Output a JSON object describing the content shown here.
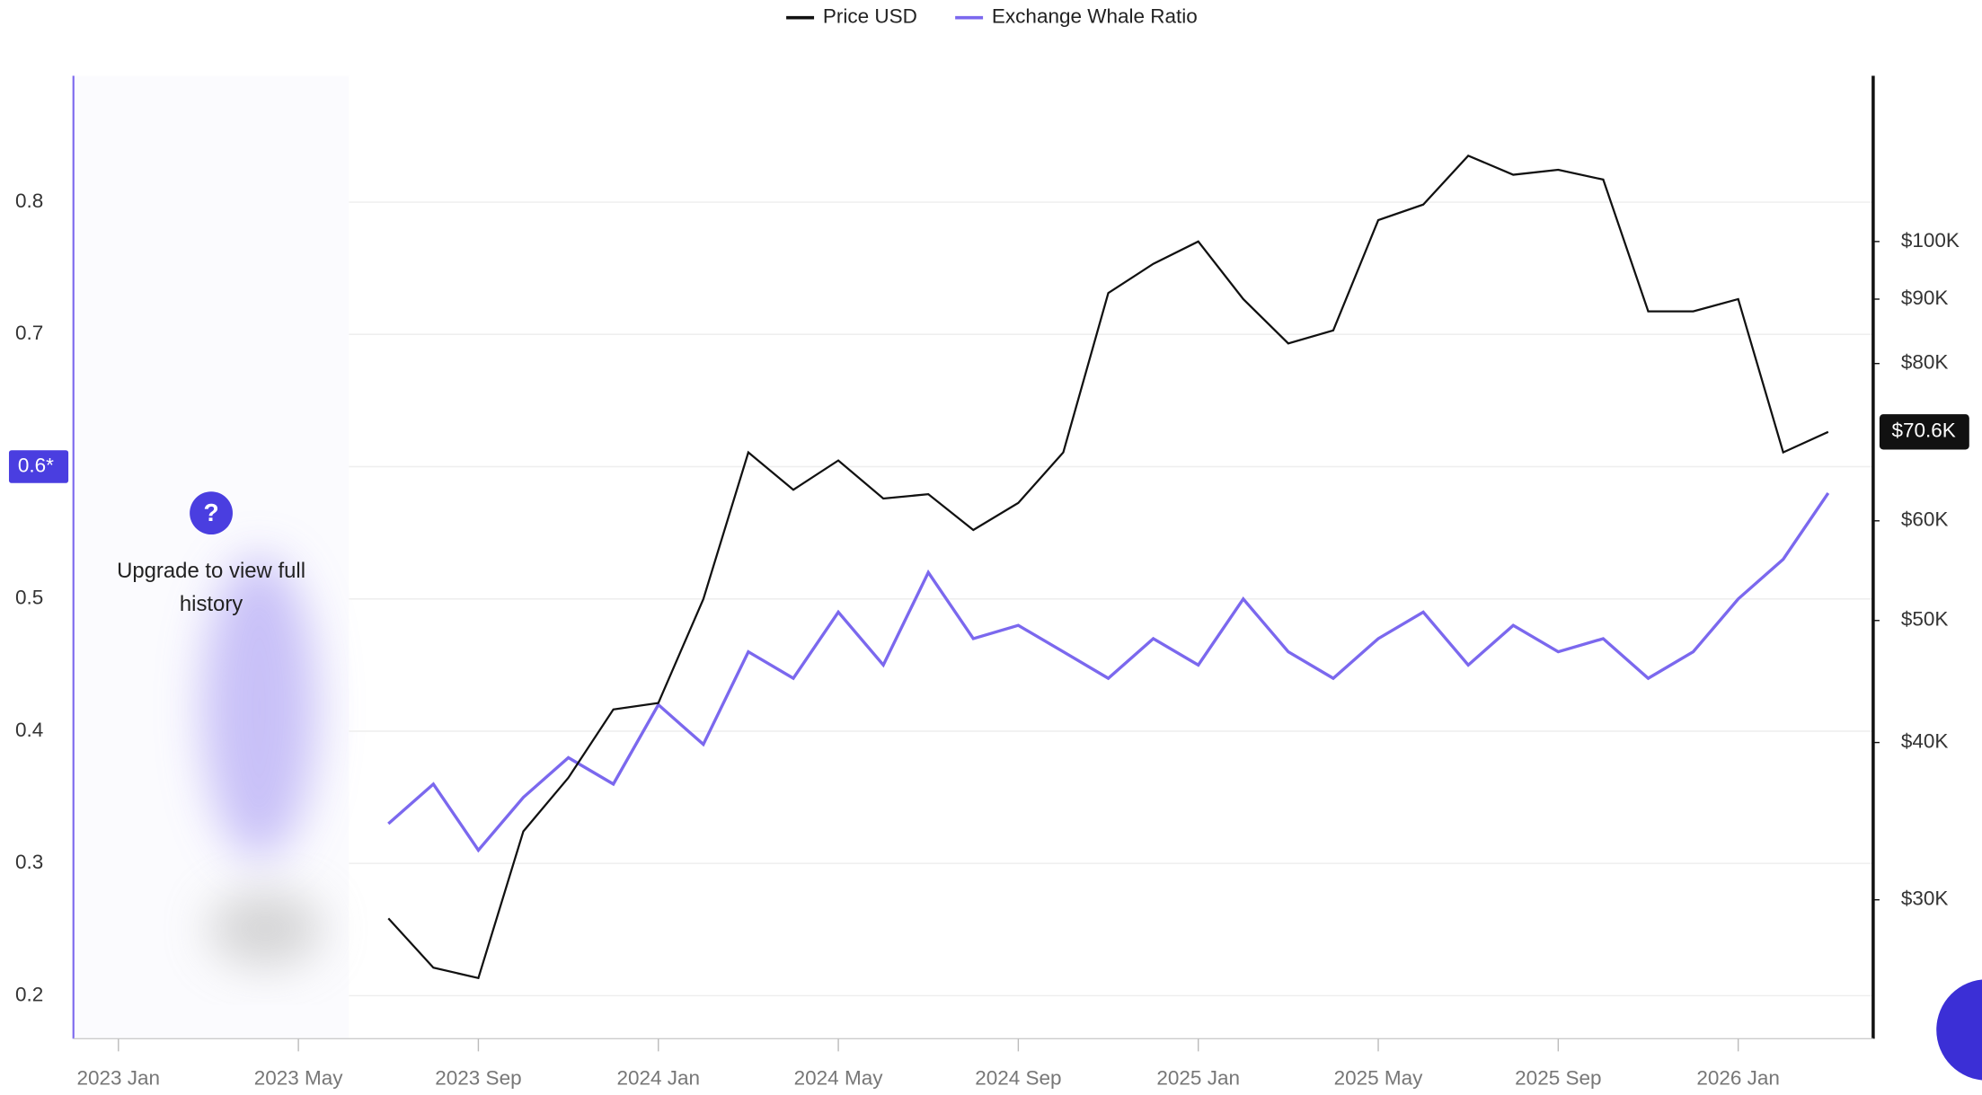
{
  "chart_data": {
    "type": "line",
    "legend_position": "top",
    "annotation": "Upgrade to view full history",
    "annotation_icon": "?",
    "left_marker": {
      "value": 0.6,
      "label": "0.6*"
    },
    "last_price": {
      "value": 70600,
      "label": "$70.6K"
    },
    "x": [
      "2023-07",
      "2023-08",
      "2023-09",
      "2023-10",
      "2023-11",
      "2023-12",
      "2024-01",
      "2024-02",
      "2024-03",
      "2024-04",
      "2024-05",
      "2024-06",
      "2024-07",
      "2024-08",
      "2024-09",
      "2024-10",
      "2024-11",
      "2024-12",
      "2025-01",
      "2025-02",
      "2025-03",
      "2025-04",
      "2025-05",
      "2025-06",
      "2025-07",
      "2025-08",
      "2025-09",
      "2025-10",
      "2025-11",
      "2025-12",
      "2026-01",
      "2026-02",
      "2026-03"
    ],
    "xlim": [
      "2022-12",
      "2026-04"
    ],
    "xticks": [
      {
        "value": "2023-01",
        "label": "2023 Jan"
      },
      {
        "value": "2023-05",
        "label": "2023 May"
      },
      {
        "value": "2023-09",
        "label": "2023 Sep"
      },
      {
        "value": "2024-01",
        "label": "2024 Jan"
      },
      {
        "value": "2024-05",
        "label": "2024 May"
      },
      {
        "value": "2024-09",
        "label": "2024 Sep"
      },
      {
        "value": "2025-01",
        "label": "2025 Jan"
      },
      {
        "value": "2025-05",
        "label": "2025 May"
      },
      {
        "value": "2025-09",
        "label": "2025 Sep"
      },
      {
        "value": "2026-01",
        "label": "2026 Jan"
      }
    ],
    "ylim": [
      0.1675,
      0.8955
    ],
    "yticks": [
      0.2,
      0.3,
      0.4,
      0.5,
      0.6,
      0.7,
      0.8
    ],
    "y2lim": [
      23270,
      135400
    ],
    "y2_log": true,
    "y2ticks": [
      {
        "value": 30000,
        "label": "$30K"
      },
      {
        "value": 40000,
        "label": "$40K"
      },
      {
        "value": 50000,
        "label": "$50K"
      },
      {
        "value": 60000,
        "label": "$60K"
      },
      {
        "value": 80000,
        "label": "$80K"
      },
      {
        "value": 90000,
        "label": "$90K"
      },
      {
        "value": 100000,
        "label": "$100K"
      }
    ],
    "grid": true,
    "series": [
      {
        "name": "Price USD",
        "color": "#111111",
        "axis": "y2",
        "values": [
          29000,
          26500,
          26000,
          34000,
          37500,
          42500,
          43000,
          52000,
          68000,
          63500,
          67000,
          62500,
          63000,
          59000,
          62000,
          68000,
          91000,
          96000,
          100000,
          90000,
          83000,
          85000,
          104000,
          107000,
          117000,
          113000,
          114000,
          112000,
          88000,
          88000,
          90000,
          68000,
          70600
        ]
      },
      {
        "name": "Exchange Whale Ratio",
        "color": "#7b68ee",
        "axis": "y",
        "values": [
          0.33,
          0.36,
          0.31,
          0.35,
          0.38,
          0.36,
          0.42,
          0.39,
          0.46,
          0.44,
          0.49,
          0.45,
          0.52,
          0.47,
          0.48,
          0.46,
          0.44,
          0.47,
          0.45,
          0.5,
          0.46,
          0.44,
          0.47,
          0.49,
          0.45,
          0.48,
          0.46,
          0.47,
          0.44,
          0.46,
          0.5,
          0.53,
          0.58
        ]
      }
    ]
  }
}
